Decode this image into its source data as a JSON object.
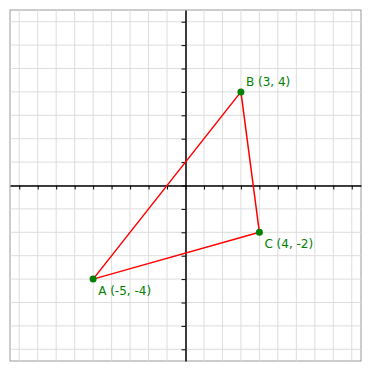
{
  "chart_data": {
    "type": "line",
    "xlim": [
      -9.5,
      9.5
    ],
    "ylim": [
      -7.5,
      7.5
    ],
    "xticks": [
      -9,
      -8,
      -7,
      -6,
      -5,
      -4,
      -3,
      -2,
      -1,
      0,
      1,
      2,
      3,
      4,
      5,
      6,
      7,
      8,
      9
    ],
    "yticks": [
      -7,
      -6,
      -5,
      -4,
      -3,
      -2,
      -1,
      0,
      1,
      2,
      3,
      4,
      5,
      6,
      7
    ],
    "grid": true,
    "tick_labels": false,
    "data_labels": true,
    "series": [
      {
        "type": "line",
        "color": "#ff0000",
        "x": [
          -5,
          3,
          4,
          -5
        ],
        "values": [
          -4,
          4,
          -2,
          -4
        ]
      },
      {
        "type": "scatter",
        "color": "#008000",
        "x": [
          -5,
          3,
          4
        ],
        "values": [
          -4,
          4,
          -2
        ],
        "value_labels": [
          "A (-5, -4)",
          "B (3, 4)",
          "C (4, -2)"
        ]
      }
    ]
  }
}
